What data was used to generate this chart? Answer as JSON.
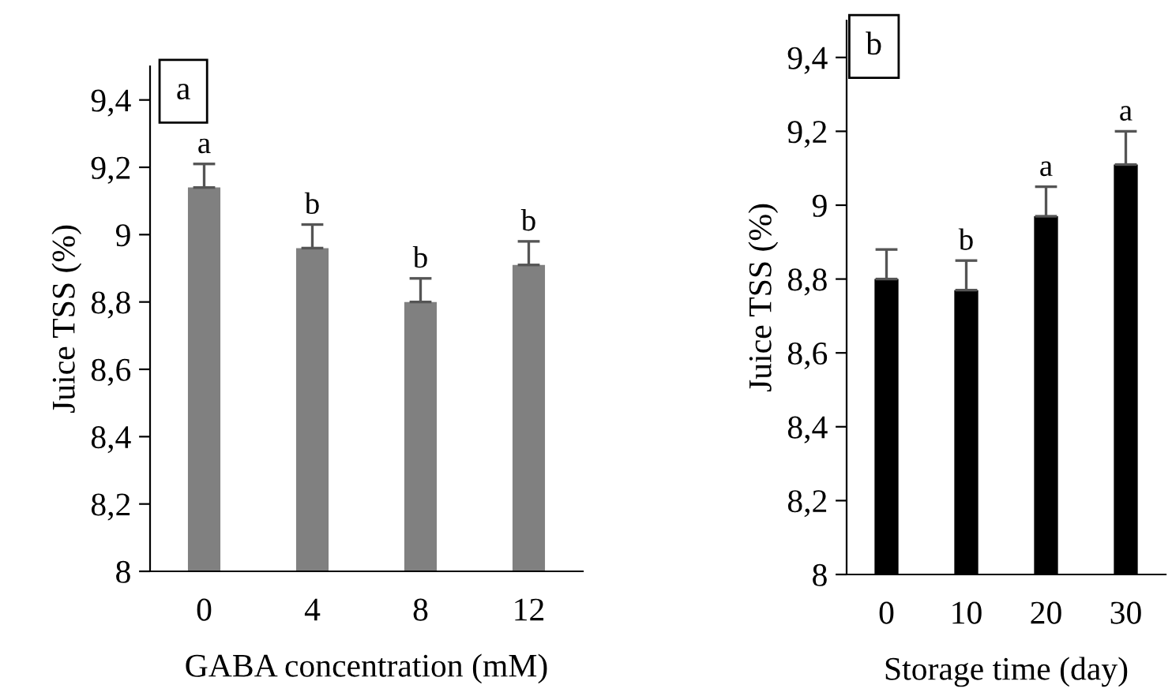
{
  "chart_data": [
    {
      "type": "bar",
      "categories": [
        "0",
        "4",
        "8",
        "12"
      ],
      "xlabel": "GABA concentration (mM)",
      "ylabel": "Juice TSS (%)",
      "color": "#808080",
      "values": [
        9.14,
        8.96,
        8.8,
        8.91
      ],
      "errors": [
        [
          9.14,
          9.21
        ],
        [
          8.96,
          9.03
        ],
        [
          8.8,
          8.87
        ],
        [
          8.91,
          8.98
        ]
      ],
      "ylim": [
        8,
        9.5
      ],
      "yticks": [
        8,
        {
          "value": 8.2,
          "label": "8,2"
        },
        {
          "value": 8.4,
          "label": "8,4"
        },
        {
          "value": 8.6,
          "label": "8,6"
        },
        {
          "value": 8.8,
          "label": "8,8"
        },
        9,
        {
          "value": 9.2,
          "label": "9,2"
        },
        {
          "value": 9.4,
          "label": "9,4"
        }
      ],
      "annotations": [
        "a",
        "a",
        "b",
        "b",
        "b"
      ]
    },
    {
      "type": "bar",
      "categories": [
        "0",
        "10",
        "20",
        "30"
      ],
      "xlabel": "Storage time (day)",
      "ylabel": "Juice TSS (%)",
      "color": "#000000",
      "values": [
        8.8,
        8.77,
        8.97,
        9.11
      ],
      "errors": [
        [
          8.8,
          8.88
        ],
        [
          8.77,
          8.85
        ],
        [
          8.97,
          9.05
        ],
        [
          9.11,
          9.2
        ]
      ],
      "ylim": [
        8,
        9.5
      ],
      "yticks": [
        8,
        {
          "value": 8.2,
          "label": "8,2"
        },
        {
          "value": 8.4,
          "label": "8,4"
        },
        {
          "value": 8.6,
          "label": "8,6"
        },
        {
          "value": 8.8,
          "label": "8,8"
        },
        9,
        {
          "value": 9.2,
          "label": "9,2"
        },
        {
          "value": 9.4,
          "label": "9,4"
        }
      ],
      "annotations": [
        "b",
        "b",
        "a",
        "a"
      ]
    }
  ]
}
